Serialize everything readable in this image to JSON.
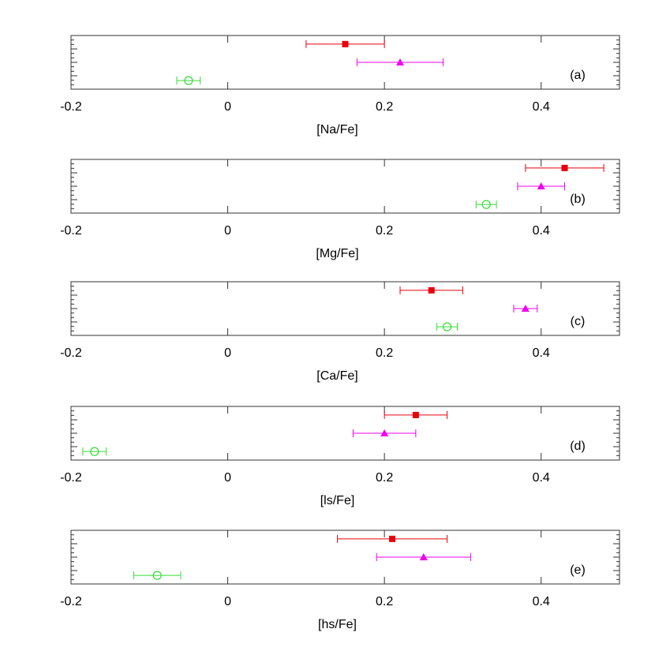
{
  "chart_data": [
    {
      "type": "scatter",
      "xlabel": "[Na/Fe]",
      "annotation": "(a)",
      "xlim": [
        -0.2,
        0.5
      ],
      "xticks": [
        -0.2,
        0,
        0.2,
        0.4
      ],
      "series": [
        {
          "color": "#e8000b",
          "marker": "square",
          "values": [
            0.15
          ],
          "errors": [
            0.05
          ]
        },
        {
          "color": "#f000f0",
          "marker": "triangle",
          "values": [
            0.22
          ],
          "errors": [
            0.055
          ]
        },
        {
          "color": "#33dd33",
          "marker": "circle",
          "values": [
            -0.05
          ],
          "errors": [
            0.015
          ]
        }
      ]
    },
    {
      "type": "scatter",
      "xlabel": "[Mg/Fe]",
      "annotation": "(b)",
      "xlim": [
        -0.2,
        0.5
      ],
      "xticks": [
        -0.2,
        0,
        0.2,
        0.4
      ],
      "series": [
        {
          "color": "#e8000b",
          "marker": "square",
          "values": [
            0.43
          ],
          "errors": [
            0.05
          ]
        },
        {
          "color": "#f000f0",
          "marker": "triangle",
          "values": [
            0.4
          ],
          "errors": [
            0.03
          ]
        },
        {
          "color": "#33dd33",
          "marker": "circle",
          "values": [
            0.33
          ],
          "errors": [
            0.013
          ]
        }
      ]
    },
    {
      "type": "scatter",
      "xlabel": "[Ca/Fe]",
      "annotation": "(c)",
      "xlim": [
        -0.2,
        0.5
      ],
      "xticks": [
        -0.2,
        0,
        0.2,
        0.4
      ],
      "series": [
        {
          "color": "#e8000b",
          "marker": "square",
          "values": [
            0.26
          ],
          "errors": [
            0.04
          ]
        },
        {
          "color": "#f000f0",
          "marker": "triangle",
          "values": [
            0.38
          ],
          "errors": [
            0.015
          ]
        },
        {
          "color": "#33dd33",
          "marker": "circle",
          "values": [
            0.28
          ],
          "errors": [
            0.013
          ]
        }
      ]
    },
    {
      "type": "scatter",
      "xlabel": "[ls/Fe]",
      "annotation": "(d)",
      "xlim": [
        -0.2,
        0.5
      ],
      "xticks": [
        -0.2,
        0,
        0.2,
        0.4
      ],
      "series": [
        {
          "color": "#e8000b",
          "marker": "square",
          "values": [
            0.24
          ],
          "errors": [
            0.04
          ]
        },
        {
          "color": "#f000f0",
          "marker": "triangle",
          "values": [
            0.2
          ],
          "errors": [
            0.04
          ]
        },
        {
          "color": "#33dd33",
          "marker": "circle",
          "values": [
            -0.17
          ],
          "errors": [
            0.015
          ]
        }
      ]
    },
    {
      "type": "scatter",
      "xlabel": "[hs/Fe]",
      "annotation": "(e)",
      "xlim": [
        -0.2,
        0.5
      ],
      "xticks": [
        -0.2,
        0,
        0.2,
        0.4
      ],
      "series": [
        {
          "color": "#e8000b",
          "marker": "square",
          "values": [
            0.21
          ],
          "errors": [
            0.07
          ]
        },
        {
          "color": "#f000f0",
          "marker": "triangle",
          "values": [
            0.25
          ],
          "errors": [
            0.06
          ]
        },
        {
          "color": "#33dd33",
          "marker": "circle",
          "values": [
            -0.09
          ],
          "errors": [
            0.03
          ]
        }
      ]
    }
  ]
}
